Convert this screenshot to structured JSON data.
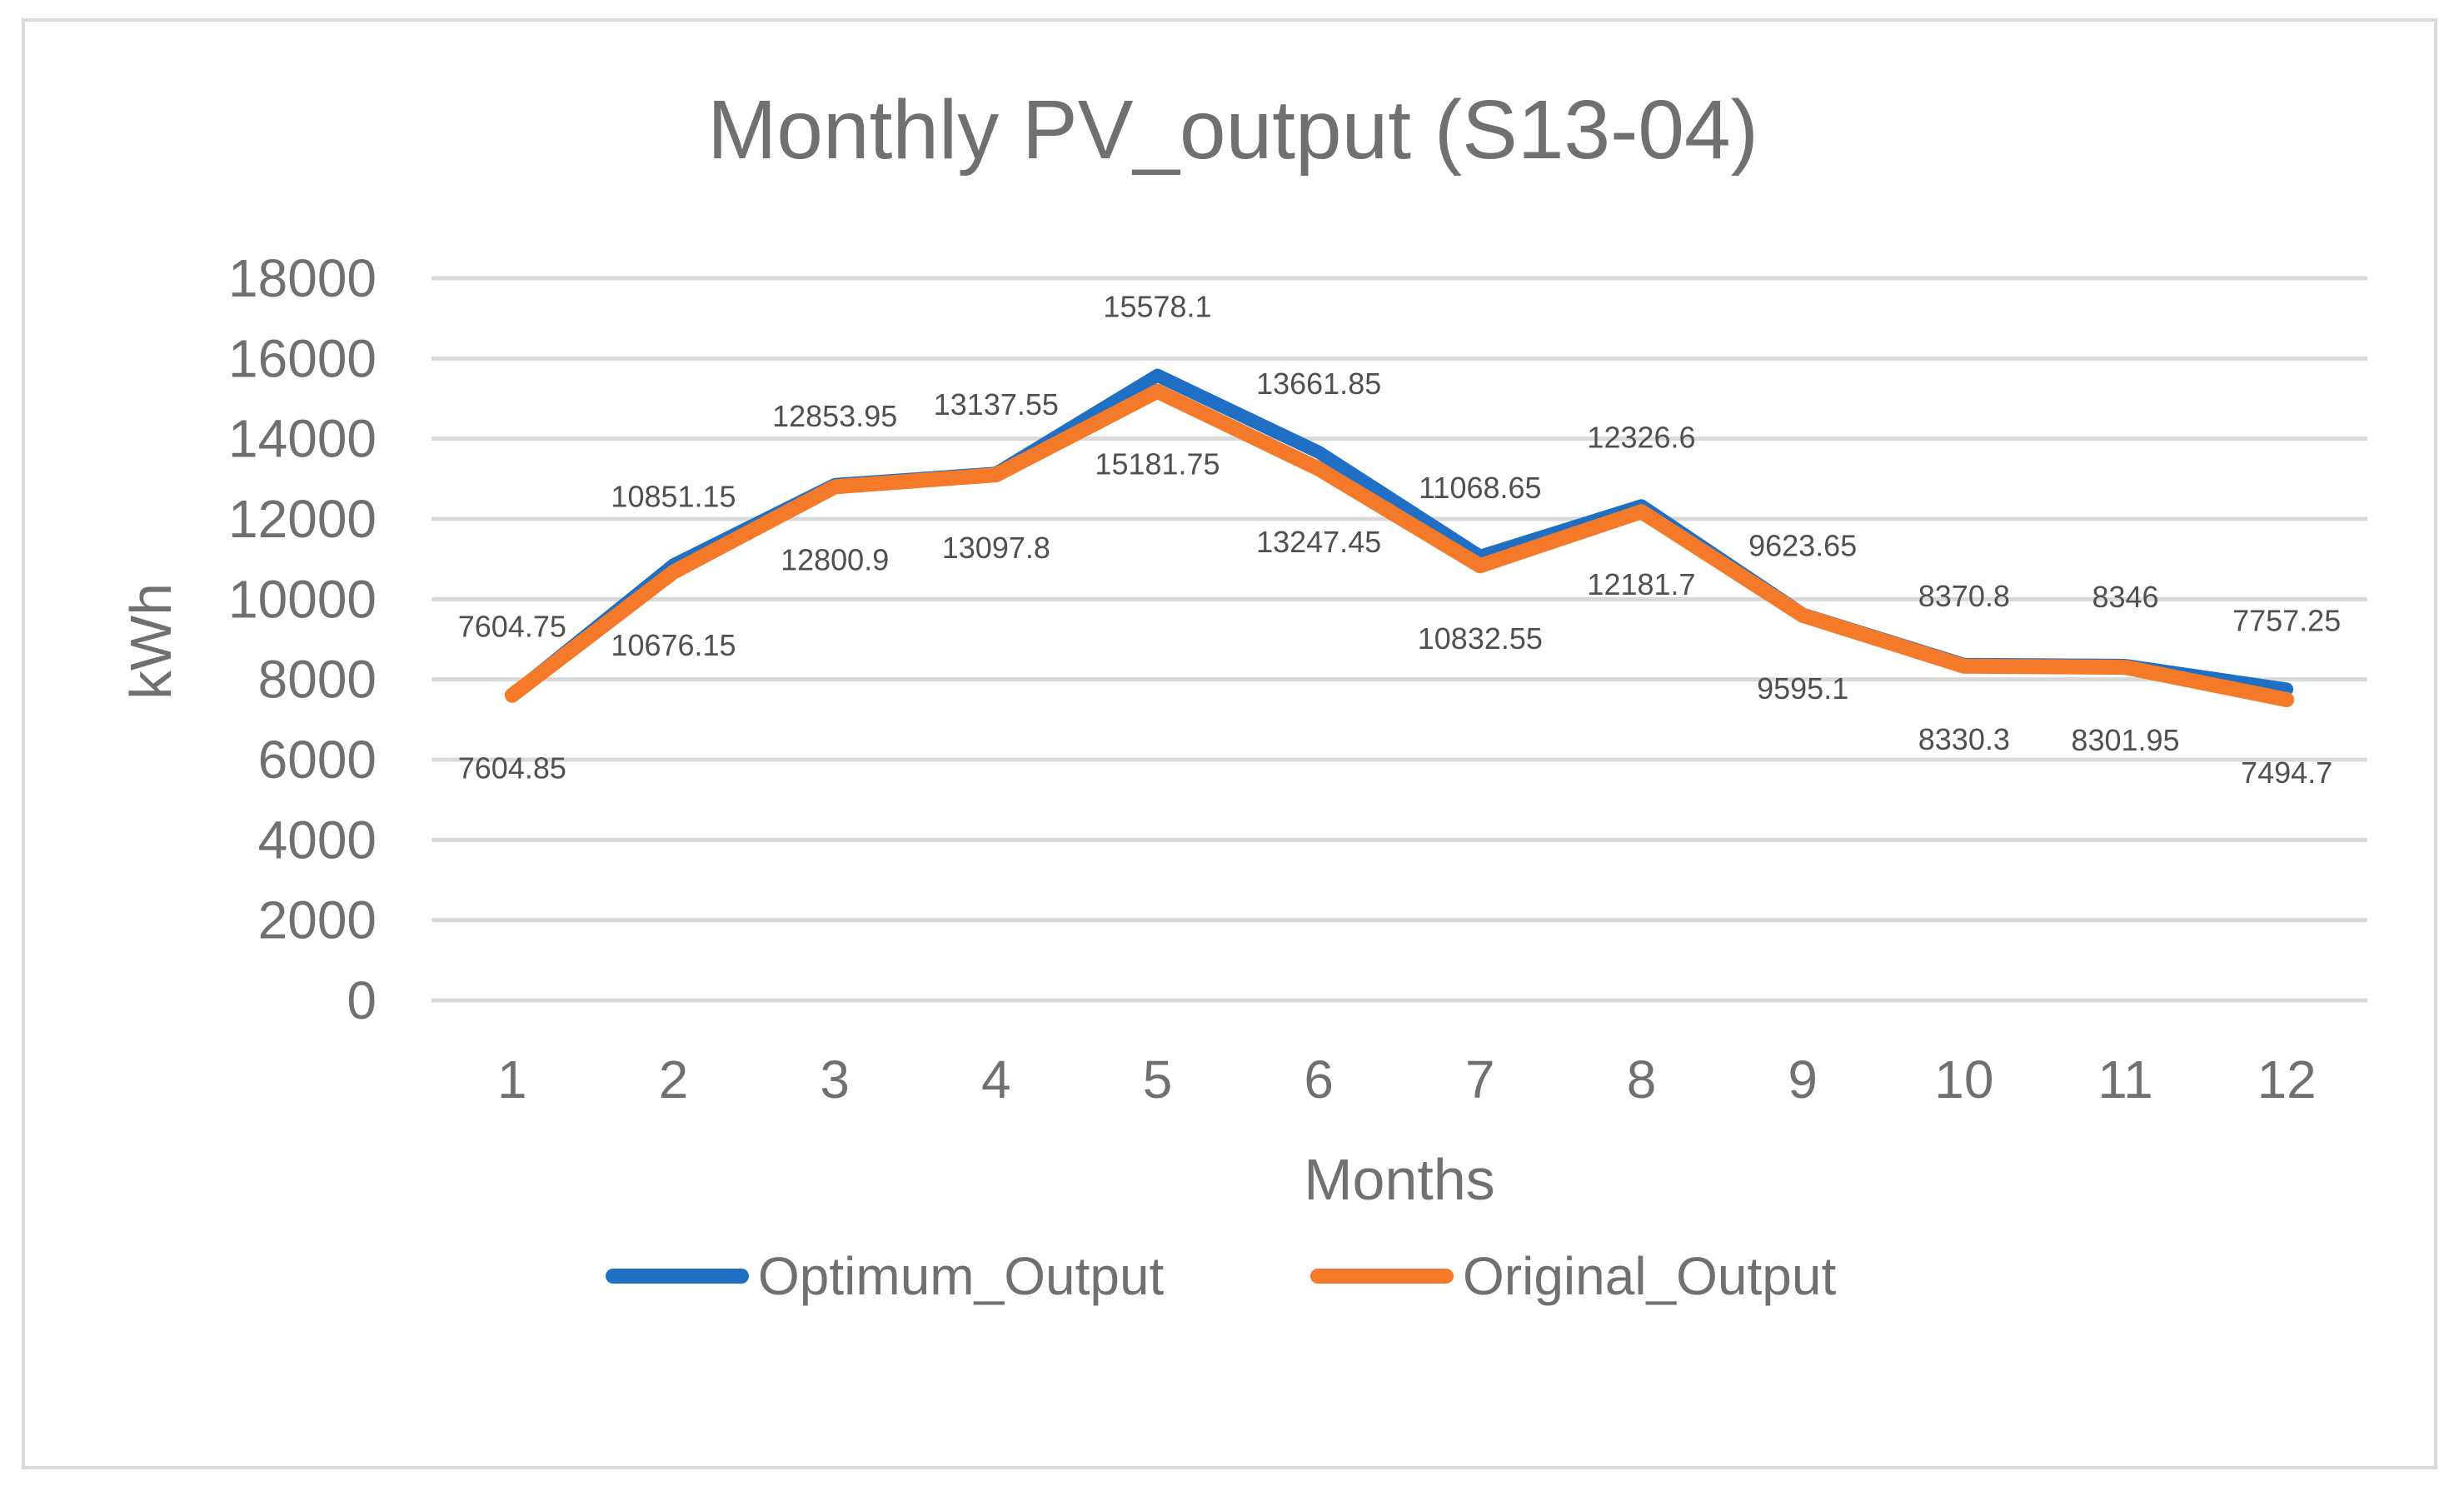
{
  "chart_data": {
    "type": "line",
    "title": "Monthly PV_output (S13-04)",
    "xlabel": "Months",
    "ylabel": "kWh",
    "categories": [
      "1",
      "2",
      "3",
      "4",
      "5",
      "6",
      "7",
      "8",
      "9",
      "10",
      "11",
      "12"
    ],
    "yticks": [
      "0",
      "2000",
      "4000",
      "6000",
      "8000",
      "10000",
      "12000",
      "14000",
      "16000",
      "18000"
    ],
    "ylim": [
      0,
      18000
    ],
    "grid": true,
    "legend": "bottom",
    "series": [
      {
        "name": "Optimum_Output",
        "color": "#1f6fc5",
        "values": [
          7604.75,
          10851.15,
          12853.95,
          13137.55,
          15578.1,
          13661.85,
          11068.65,
          12326.6,
          9623.65,
          8370.8,
          8346,
          7757.25
        ],
        "labels": [
          "7604.75",
          "10851.15",
          "12853.95",
          "13137.55",
          "15578.1",
          "13661.85",
          "11068.65",
          "12326.6",
          "9623.65",
          "8370.8",
          "8346",
          "7757.25"
        ]
      },
      {
        "name": "Original_Output",
        "color": "#f47a2a",
        "values": [
          7604.85,
          10676.15,
          12800.9,
          13097.8,
          15181.75,
          13247.45,
          10832.55,
          12181.7,
          9595.1,
          8330.3,
          8301.95,
          7494.7
        ],
        "labels": [
          "7604.85",
          "10676.15",
          "12800.9",
          "13097.8",
          "15181.75",
          "13247.45",
          "10832.55",
          "12181.7",
          "9595.1",
          "8330.3",
          "8301.95",
          "7494.7"
        ]
      }
    ]
  }
}
